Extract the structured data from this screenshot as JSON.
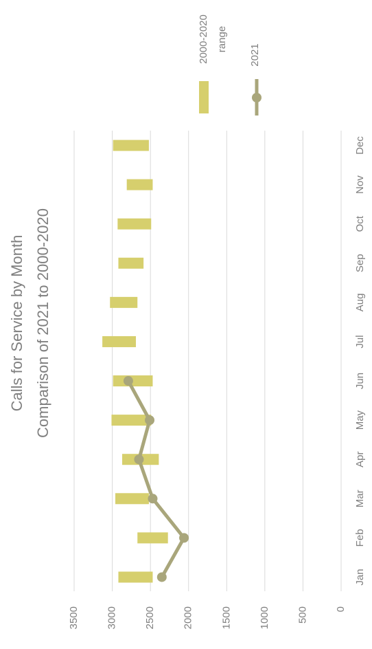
{
  "chart_data": {
    "type": "floating-bar-line",
    "title": "Calls for Service by Month",
    "subtitle": "Comparison of 2021 to 2000-2020",
    "categories": [
      "Jan",
      "Feb",
      "Mar",
      "Apr",
      "May",
      "Jun",
      "Jul",
      "Aug",
      "Sep",
      "Oct",
      "Nov",
      "Dec"
    ],
    "series": [
      {
        "name": "2000-2020 range",
        "color": "#d6cf6d",
        "low": [
          2470,
          2270,
          2520,
          2390,
          2490,
          2470,
          2690,
          2670,
          2590,
          2490,
          2470,
          2520
        ],
        "high": [
          2920,
          2670,
          2960,
          2870,
          3010,
          2990,
          3130,
          3030,
          2920,
          2930,
          2810,
          2990
        ]
      },
      {
        "name": "2021",
        "color": "#a9a67b",
        "values": [
          2350,
          2060,
          2470,
          2650,
          2510,
          2790,
          null,
          null,
          null,
          null,
          null,
          null
        ]
      }
    ],
    "ylim": [
      0,
      3500
    ],
    "yticks": [
      0,
      500,
      1000,
      1500,
      2000,
      2500,
      3000,
      3500
    ],
    "grid": true,
    "legend": "right",
    "rotated": true
  }
}
